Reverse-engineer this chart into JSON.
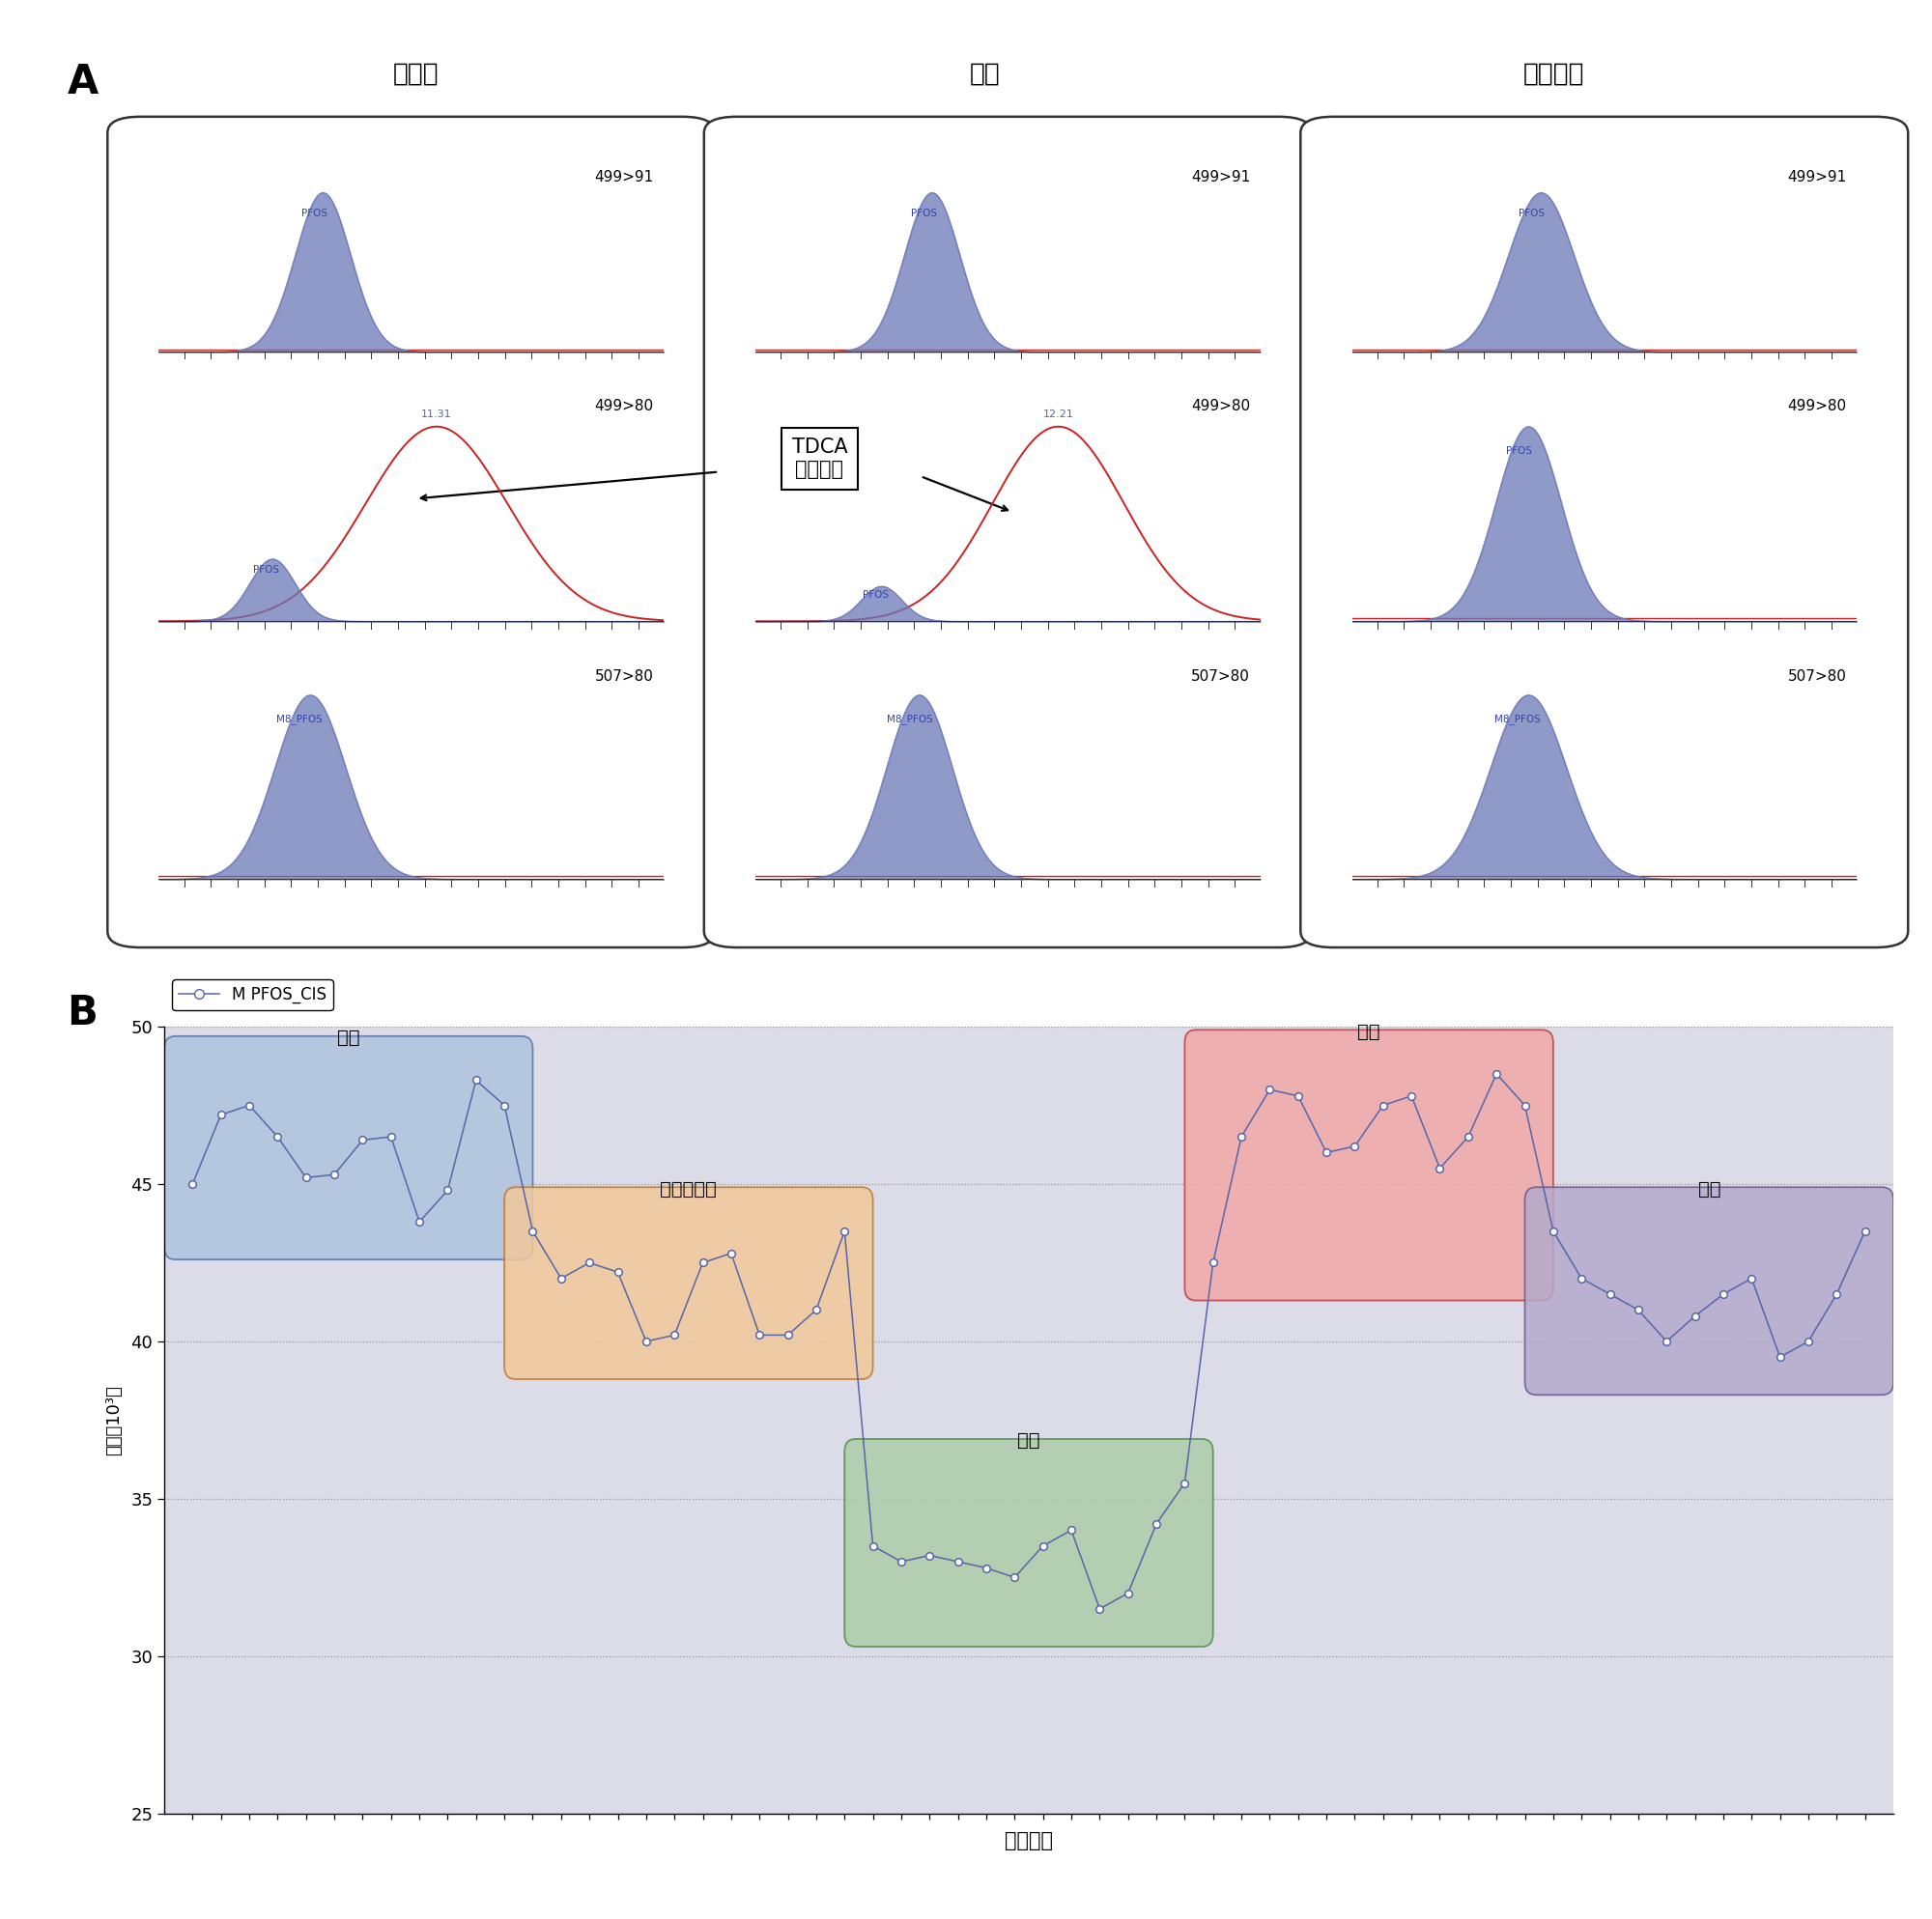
{
  "panel_A_title": "A",
  "panel_B_title": "B",
  "col_titles": [
    "牛肝臓",
    "鶏卵",
    "牛ひき肉"
  ],
  "row_labels": [
    "499>91",
    "499>80",
    "507>80"
  ],
  "interference_label": "TDCA\n干渉物質",
  "rt_label_col1": "11.31",
  "rt_label_col2": "12.21",
  "blue_peak_color": "#6B78B8",
  "blue_peak_alpha": 0.75,
  "red_line_color": "#CC2222",
  "box_edge_color": "#444444",
  "series_label": "M PFOS_CIS",
  "line_color": "#5566AA",
  "marker_facecolor": "#FFFFFF",
  "marker_edgecolor": "#5566AA",
  "groups": [
    "サケ",
    "ティラピア",
    "牛肉",
    "肝臓",
    "腎臓"
  ],
  "group_colors": [
    "#ADC4DE",
    "#F2C89A",
    "#AECCA8",
    "#F2A8A8",
    "#B4AACC"
  ],
  "group_edge_colors": [
    "#5577AA",
    "#C07830",
    "#50904A",
    "#BB4040",
    "#705890"
  ],
  "y_values_sake": [
    45.0,
    47.2,
    47.5,
    46.5,
    45.2,
    45.3,
    46.4,
    46.5,
    43.8,
    44.8,
    48.3,
    47.5
  ],
  "y_values_tilapia": [
    43.5,
    42.0,
    42.5,
    42.2,
    40.0,
    40.2,
    42.5,
    42.8,
    40.2,
    40.2,
    41.0,
    43.5
  ],
  "y_values_beef": [
    33.5,
    33.0,
    33.2,
    33.0,
    32.8,
    32.5,
    33.5,
    34.0,
    31.5,
    32.0,
    34.2,
    35.5
  ],
  "y_values_liver": [
    42.5,
    46.5,
    48.0,
    47.8,
    46.0,
    46.2,
    47.5,
    47.8,
    45.5,
    46.5,
    48.5,
    47.5
  ],
  "y_values_kidney": [
    43.5,
    42.0,
    41.5,
    41.0,
    40.0,
    40.8,
    41.5,
    42.0,
    39.5,
    40.0,
    41.5,
    43.5
  ],
  "ylim": [
    25,
    50
  ],
  "yticks": [
    25,
    30,
    35,
    40,
    45,
    50
  ],
  "xlabel": "サンプル",
  "ylabel": "面積（10³）",
  "b_bg_color": "#DCDCE8"
}
